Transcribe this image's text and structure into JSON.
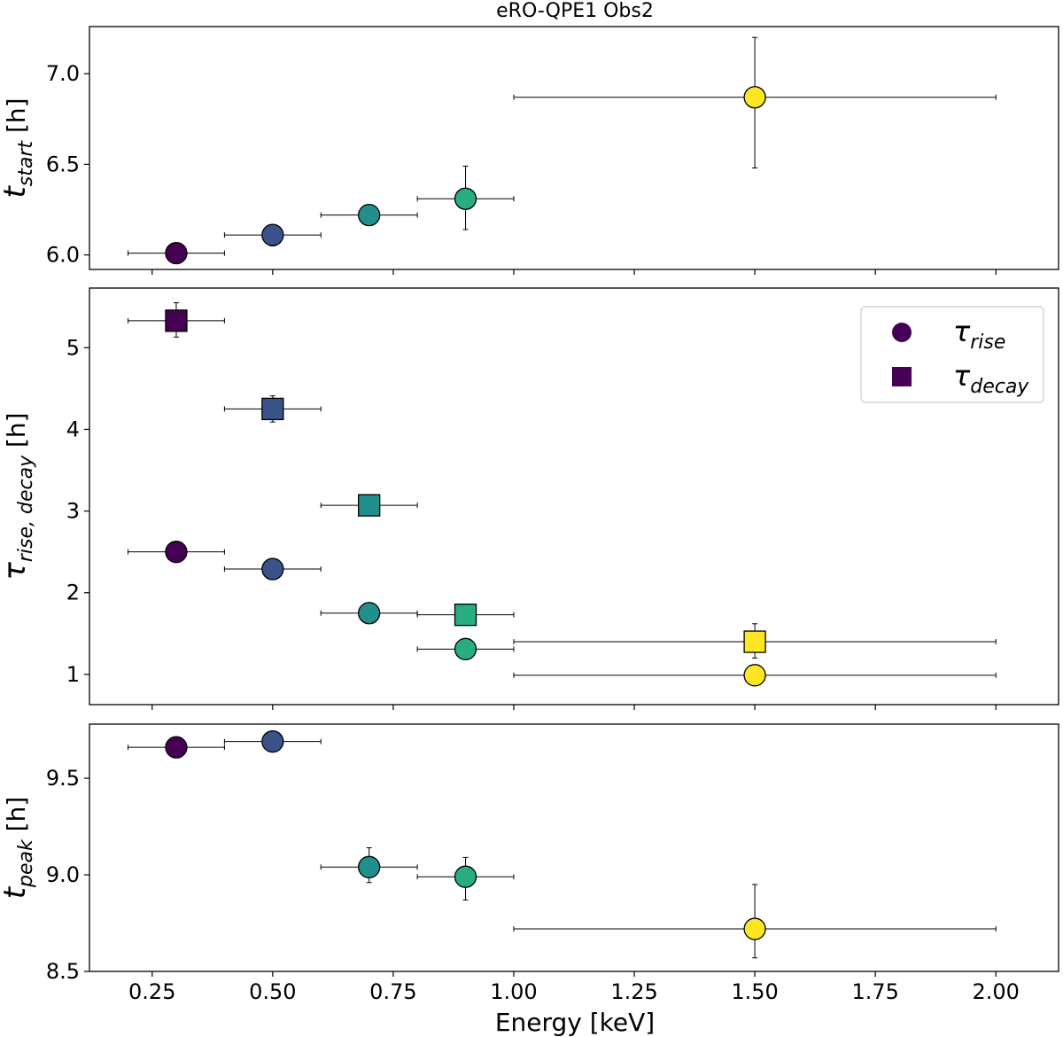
{
  "chart_data": {
    "type": "scatter",
    "title": "eRO-QPE1 Obs2",
    "xlabel": "Energy [keV]",
    "xlim": [
      0.12,
      2.13
    ],
    "xticks": [
      "0.25",
      "0.50",
      "0.75",
      "1.00",
      "1.25",
      "1.50",
      "1.75",
      "2.00"
    ],
    "colors": [
      "#440154",
      "#3b528b",
      "#21908d",
      "#27ad81",
      "#fde725"
    ],
    "panels": [
      {
        "id": "t_start",
        "ylabel_main": "t",
        "ylabel_sub": "start",
        "ylabel_unit": " [h]",
        "ylim": [
          5.92,
          7.26
        ],
        "yticks": [
          "6.0",
          "6.5",
          "7.0"
        ],
        "series": [
          {
            "marker": "circle",
            "points": [
              {
                "x": 0.3,
                "y": 6.01,
                "xerr": 0.1,
                "yerr_lo": 0.04,
                "yerr_hi": 0.04
              },
              {
                "x": 0.5,
                "y": 6.11,
                "xerr": 0.1,
                "yerr_lo": 0.06,
                "yerr_hi": 0.04
              },
              {
                "x": 0.7,
                "y": 6.22,
                "xerr": 0.1,
                "yerr_lo": 0.05,
                "yerr_hi": 0.04
              },
              {
                "x": 0.9,
                "y": 6.31,
                "xerr": 0.1,
                "yerr_lo": 0.17,
                "yerr_hi": 0.18
              },
              {
                "x": 1.5,
                "y": 6.87,
                "xerr": 0.5,
                "yerr_lo": 0.39,
                "yerr_hi": 0.33
              }
            ]
          }
        ]
      },
      {
        "id": "tau",
        "ylabel_main": "τ",
        "ylabel_sub": "rise, decay",
        "ylabel_unit": " [h]",
        "ylim": [
          0.63,
          5.73
        ],
        "yticks": [
          "1",
          "2",
          "3",
          "4",
          "5"
        ],
        "legend": {
          "position": "upper right",
          "entries": [
            {
              "marker": "circle",
              "main": "τ",
              "sub": "rise"
            },
            {
              "marker": "square",
              "main": "τ",
              "sub": "decay"
            }
          ]
        },
        "series": [
          {
            "marker": "circle",
            "label": "τ_rise",
            "points": [
              {
                "x": 0.3,
                "y": 2.5,
                "xerr": 0.1,
                "yerr_lo": 0.07,
                "yerr_hi": 0.07
              },
              {
                "x": 0.5,
                "y": 2.29,
                "xerr": 0.1,
                "yerr_lo": 0.07,
                "yerr_hi": 0.07
              },
              {
                "x": 0.7,
                "y": 1.75,
                "xerr": 0.1,
                "yerr_lo": 0.06,
                "yerr_hi": 0.06
              },
              {
                "x": 0.9,
                "y": 1.31,
                "xerr": 0.1,
                "yerr_lo": 0.06,
                "yerr_hi": 0.06
              },
              {
                "x": 1.5,
                "y": 0.99,
                "xerr": 0.5,
                "yerr_lo": 0.1,
                "yerr_hi": 0.1
              }
            ]
          },
          {
            "marker": "square",
            "label": "τ_decay",
            "points": [
              {
                "x": 0.3,
                "y": 5.33,
                "xerr": 0.1,
                "yerr_lo": 0.2,
                "yerr_hi": 0.22
              },
              {
                "x": 0.5,
                "y": 4.25,
                "xerr": 0.1,
                "yerr_lo": 0.16,
                "yerr_hi": 0.16
              },
              {
                "x": 0.7,
                "y": 3.07,
                "xerr": 0.1,
                "yerr_lo": 0.1,
                "yerr_hi": 0.1
              },
              {
                "x": 0.9,
                "y": 1.73,
                "xerr": 0.1,
                "yerr_lo": 0.08,
                "yerr_hi": 0.08
              },
              {
                "x": 1.5,
                "y": 1.4,
                "xerr": 0.5,
                "yerr_lo": 0.2,
                "yerr_hi": 0.22
              }
            ]
          }
        ]
      },
      {
        "id": "t_peak",
        "ylabel_main": "t",
        "ylabel_sub": "peak",
        "ylabel_unit": " [h]",
        "ylim": [
          8.5,
          9.78
        ],
        "yticks": [
          "8.5",
          "9.0",
          "9.5"
        ],
        "series": [
          {
            "marker": "circle",
            "points": [
              {
                "x": 0.3,
                "y": 9.66,
                "xerr": 0.1,
                "yerr_lo": 0.04,
                "yerr_hi": 0.04
              },
              {
                "x": 0.5,
                "y": 9.69,
                "xerr": 0.1,
                "yerr_lo": 0.04,
                "yerr_hi": 0.04
              },
              {
                "x": 0.7,
                "y": 9.04,
                "xerr": 0.1,
                "yerr_lo": 0.08,
                "yerr_hi": 0.1
              },
              {
                "x": 0.9,
                "y": 8.99,
                "xerr": 0.1,
                "yerr_lo": 0.12,
                "yerr_hi": 0.1
              },
              {
                "x": 1.5,
                "y": 8.72,
                "xerr": 0.5,
                "yerr_lo": 0.15,
                "yerr_hi": 0.23
              }
            ]
          }
        ]
      }
    ]
  }
}
